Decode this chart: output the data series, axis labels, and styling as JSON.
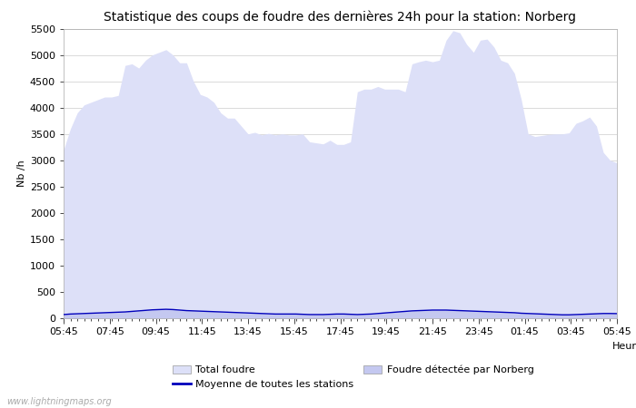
{
  "title": "Statistique des coups de foudre des dernières 24h pour la station: Norberg",
  "xlabel": "Heure",
  "ylabel": "Nb /h",
  "ylim": [
    0,
    5500
  ],
  "yticks": [
    0,
    500,
    1000,
    1500,
    2000,
    2500,
    3000,
    3500,
    4000,
    4500,
    5000,
    5500
  ],
  "xtick_labels": [
    "05:45",
    "07:45",
    "09:45",
    "11:45",
    "13:45",
    "15:45",
    "17:45",
    "19:45",
    "21:45",
    "23:45",
    "01:45",
    "03:45",
    "05:45"
  ],
  "background_color": "#ffffff",
  "plot_bg_color": "#ffffff",
  "grid_color": "#cccccc",
  "fill_total_color": "#dde0f8",
  "fill_norberg_color": "#c4c8f0",
  "line_moyenne_color": "#0000bb",
  "watermark": "www.lightningmaps.org",
  "total_foudre": [
    3200,
    3600,
    3900,
    4050,
    4100,
    4150,
    4200,
    4200,
    4230,
    4800,
    4830,
    4750,
    4900,
    5000,
    5050,
    5100,
    5000,
    4850,
    4850,
    4500,
    4250,
    4200,
    4100,
    3900,
    3800,
    3800,
    3650,
    3500,
    3530,
    3480,
    3510,
    3480,
    3500,
    3480,
    3480,
    3500,
    3350,
    3330,
    3310,
    3380,
    3300,
    3300,
    3350,
    4300,
    4350,
    4350,
    4400,
    4350,
    4350,
    4350,
    4300,
    4830,
    4870,
    4900,
    4870,
    4900,
    5280,
    5460,
    5420,
    5200,
    5050,
    5280,
    5300,
    5150,
    4900,
    4850,
    4650,
    4150,
    3500,
    3450,
    3470,
    3490,
    3500,
    3500,
    3520,
    3700,
    3750,
    3820,
    3650,
    3150,
    3000,
    2950
  ],
  "norberg_foudre": [
    70,
    80,
    85,
    90,
    95,
    100,
    105,
    110,
    115,
    120,
    130,
    140,
    150,
    160,
    165,
    170,
    165,
    155,
    145,
    140,
    135,
    130,
    125,
    120,
    115,
    110,
    105,
    100,
    95,
    90,
    85,
    80,
    80,
    80,
    80,
    75,
    70,
    70,
    70,
    75,
    80,
    80,
    75,
    70,
    75,
    80,
    90,
    100,
    110,
    120,
    130,
    140,
    145,
    150,
    155,
    155,
    155,
    150,
    145,
    140,
    135,
    130,
    125,
    120,
    115,
    110,
    105,
    95,
    90,
    85,
    80,
    75,
    70,
    65,
    65,
    70,
    75,
    80,
    85,
    90,
    90,
    88
  ],
  "moyenne_foudre": [
    70,
    80,
    85,
    90,
    95,
    100,
    105,
    110,
    115,
    120,
    130,
    140,
    150,
    160,
    165,
    170,
    165,
    155,
    145,
    140,
    135,
    130,
    125,
    120,
    115,
    110,
    105,
    100,
    95,
    90,
    85,
    80,
    80,
    80,
    80,
    75,
    70,
    70,
    70,
    75,
    80,
    80,
    75,
    70,
    75,
    80,
    90,
    100,
    110,
    120,
    130,
    140,
    145,
    150,
    155,
    155,
    155,
    150,
    145,
    140,
    135,
    130,
    125,
    120,
    115,
    110,
    105,
    95,
    90,
    85,
    80,
    75,
    70,
    65,
    65,
    70,
    75,
    80,
    85,
    90,
    90,
    88
  ],
  "title_fontsize": 10,
  "axis_fontsize": 8,
  "tick_fontsize": 8,
  "legend_fontsize": 8
}
